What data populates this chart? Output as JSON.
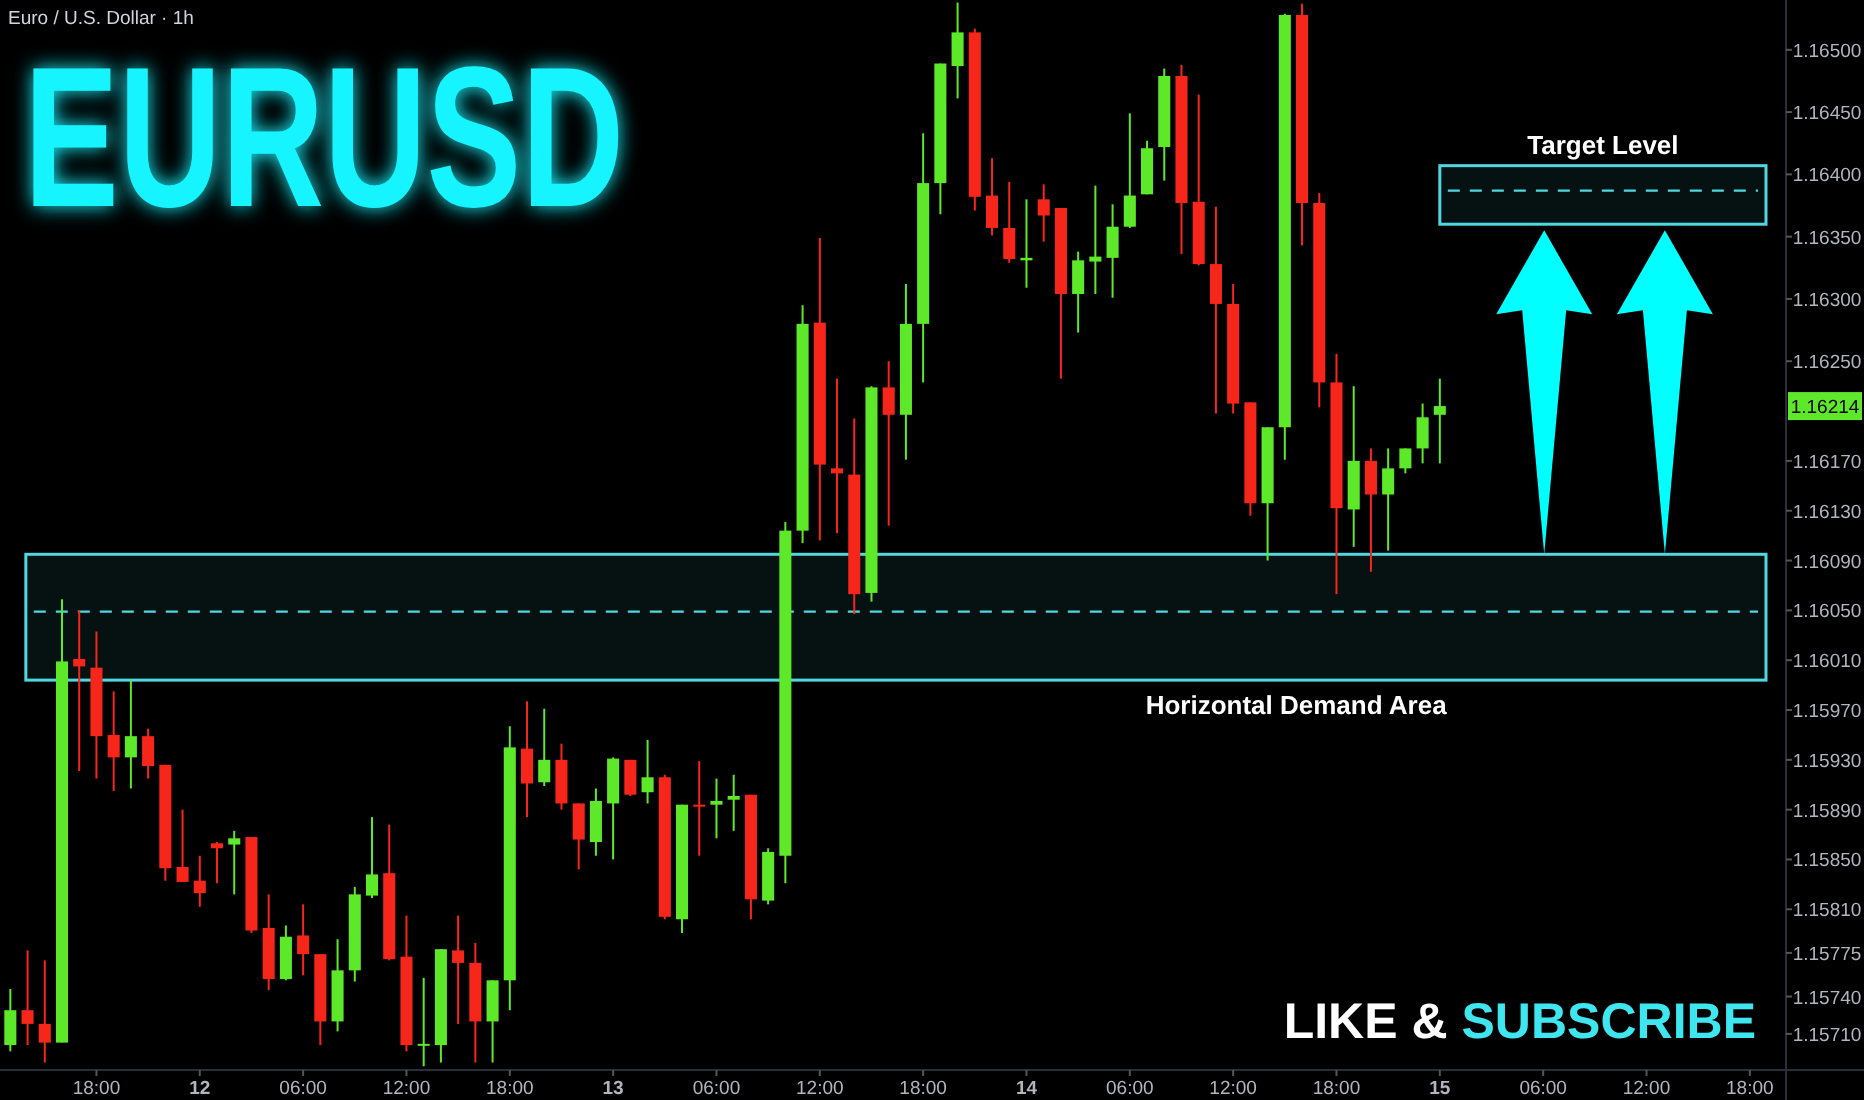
{
  "chart_data": {
    "type": "candlestick",
    "title": "EURUSD",
    "subtitle": "Euro / U.S. Dollar · 1h",
    "colors": [
      "#5ee82a",
      "#f7261b",
      "#f7261b",
      "#5ee82a",
      "#f7261b",
      "#f7261b",
      "#f7261b",
      "#5ee82a",
      "#f7261b",
      "#f7261b",
      "#f7261b",
      "#f7261b",
      "#f7261b",
      "#5ee82a",
      "#f7261b",
      "#f7261b",
      "#5ee82a",
      "#f7261b",
      "#f7261b",
      "#5ee82a",
      "#5ee82a",
      "#5ee82a",
      "#f7261b",
      "#f7261b",
      "#5ee82a",
      "#5ee82a",
      "#f7261b",
      "#f7261b",
      "#5ee82a",
      "#5ee82a",
      "#f7261b",
      "#5ee82a",
      "#f7261b",
      "#f7261b",
      "#5ee82a",
      "#5ee82a",
      "#f7261b",
      "#5ee82a",
      "#f7261b",
      "#5ee82a",
      "#f7261b",
      "#5ee82a",
      "#5ee82a",
      "#f7261b",
      "#5ee82a",
      "#5ee82a",
      "#5ee82a",
      "#f7261b",
      "#f7261b",
      "#f7261b",
      "#5ee82a",
      "#f7261b",
      "#5ee82a",
      "#5ee82a",
      "#5ee82a",
      "#5ee82a",
      "#f7261b",
      "#f7261b",
      "#f7261b",
      "#5ee82a",
      "#f7261b",
      "#f7261b",
      "#5ee82a",
      "#5ee82a",
      "#5ee82a",
      "#5ee82a",
      "#5ee82a",
      "#5ee82a",
      "#f7261b",
      "#f7261b",
      "#f7261b",
      "#f7261b",
      "#f7261b",
      "#5ee82a",
      "#5ee82a",
      "#f7261b",
      "#f7261b",
      "#f7261b",
      "#5ee82a",
      "#f7261b",
      "#5ee82a",
      "#5ee82a",
      "#5ee82a",
      "#5ee82a",
      null,
      null,
      null,
      null,
      null,
      null,
      null,
      null,
      null,
      null,
      null,
      null,
      null,
      null,
      null,
      null,
      null,
      null,
      null,
      null
    ],
    "categories": [
      null,
      null,
      null,
      null,
      null,
      "18:00",
      null,
      null,
      null,
      null,
      null,
      "12",
      null,
      null,
      null,
      null,
      null,
      "06:00",
      null,
      null,
      null,
      null,
      null,
      "12:00",
      null,
      null,
      null,
      null,
      null,
      "18:00",
      null,
      null,
      null,
      null,
      null,
      "13",
      null,
      null,
      null,
      null,
      null,
      "06:00",
      null,
      null,
      null,
      null,
      null,
      "12:00",
      null,
      null,
      null,
      null,
      null,
      "18:00",
      null,
      null,
      null,
      null,
      null,
      "14",
      null,
      null,
      null,
      null,
      null,
      "06:00",
      null,
      null,
      null,
      null,
      null,
      "12:00",
      null,
      null,
      null,
      null,
      null,
      "18:00",
      null,
      null,
      null,
      null,
      null,
      "15",
      null,
      null,
      null,
      null,
      null,
      "06:00",
      null,
      null,
      null,
      null,
      null,
      "12:00",
      null,
      null,
      null,
      null,
      null,
      "18:00",
      null,
      null
    ],
    "ohlc": [
      [
        1.15701,
        1.15746,
        1.15696,
        1.15729
      ],
      [
        1.15729,
        1.15777,
        1.15701,
        1.15718
      ],
      [
        1.15718,
        1.15769,
        1.15687,
        1.15703
      ],
      [
        1.15703,
        1.16059,
        1.15703,
        1.16009
      ],
      [
        1.16011,
        1.1605,
        1.15921,
        1.16005
      ],
      [
        1.16004,
        1.16033,
        1.15915,
        1.15949
      ],
      [
        1.1595,
        1.15985,
        1.15905,
        1.15932
      ],
      [
        1.15932,
        1.15994,
        1.15907,
        1.15949
      ],
      [
        1.15949,
        1.15955,
        1.15915,
        1.15925
      ],
      [
        1.15926,
        1.15926,
        1.15833,
        1.15843
      ],
      [
        1.15844,
        1.1589,
        1.15832,
        1.15832
      ],
      [
        1.15833,
        1.15853,
        1.15812,
        1.15823
      ],
      [
        1.15863,
        1.15864,
        1.15831,
        1.15859
      ],
      [
        1.15862,
        1.15873,
        1.15822,
        1.15867
      ],
      [
        1.15868,
        1.15868,
        1.15791,
        1.15793
      ],
      [
        1.15795,
        1.15822,
        1.15745,
        1.15754
      ],
      [
        1.15754,
        1.15797,
        1.15753,
        1.15788
      ],
      [
        1.15789,
        1.15814,
        1.15757,
        1.15774
      ],
      [
        1.15774,
        1.15774,
        1.15701,
        1.1572
      ],
      [
        1.1572,
        1.15786,
        1.15712,
        1.15761
      ],
      [
        1.15761,
        1.15828,
        1.15752,
        1.15822
      ],
      [
        1.15821,
        1.15884,
        1.15819,
        1.15838
      ],
      [
        1.15839,
        1.15878,
        1.15769,
        1.1577
      ],
      [
        1.15772,
        1.15805,
        1.15696,
        1.15701
      ],
      [
        1.15701,
        1.15755,
        1.15684,
        1.15702
      ],
      [
        1.15701,
        1.15778,
        1.15687,
        1.15778
      ],
      [
        1.15777,
        1.15805,
        1.15718,
        1.15767
      ],
      [
        1.15767,
        1.15783,
        1.15687,
        1.1572
      ],
      [
        1.1572,
        1.15753,
        1.15687,
        1.15753
      ],
      [
        1.15753,
        1.15957,
        1.15729,
        1.1594
      ],
      [
        1.15939,
        1.15977,
        1.15884,
        1.15911
      ],
      [
        1.15912,
        1.15971,
        1.15909,
        1.1593
      ],
      [
        1.1593,
        1.15943,
        1.1589,
        1.15895
      ],
      [
        1.15895,
        1.15895,
        1.15842,
        1.15866
      ],
      [
        1.15864,
        1.15907,
        1.15853,
        1.15897
      ],
      [
        1.15895,
        1.15932,
        1.1585,
        1.15931
      ],
      [
        1.1593,
        1.1593,
        1.15901,
        1.15902
      ],
      [
        1.15904,
        1.15946,
        1.15895,
        1.15916
      ],
      [
        1.15916,
        1.15918,
        1.15802,
        1.15804
      ],
      [
        1.15802,
        1.15894,
        1.15791,
        1.15894
      ],
      [
        1.15894,
        1.15929,
        1.15853,
        1.15893
      ],
      [
        1.15894,
        1.15915,
        1.15867,
        1.15897
      ],
      [
        1.15898,
        1.15918,
        1.15873,
        1.15901
      ],
      [
        1.15902,
        1.15902,
        1.15802,
        1.15818
      ],
      [
        1.15817,
        1.15859,
        1.15814,
        1.15856
      ],
      [
        1.15853,
        1.16121,
        1.15831,
        1.16114
      ],
      [
        1.16114,
        1.16295,
        1.16104,
        1.1628
      ],
      [
        1.16281,
        1.16349,
        1.16106,
        1.16167
      ],
      [
        1.16164,
        1.16236,
        1.16112,
        1.1616
      ],
      [
        1.16159,
        1.16204,
        1.16047,
        1.16063
      ],
      [
        1.16064,
        1.1623,
        1.16057,
        1.16229
      ],
      [
        1.16229,
        1.1625,
        1.16118,
        1.16207
      ],
      [
        1.16207,
        1.16312,
        1.16171,
        1.1628
      ],
      [
        1.1628,
        1.16433,
        1.16233,
        1.16393
      ],
      [
        1.16393,
        1.16489,
        1.16368,
        1.16489
      ],
      [
        1.16487,
        1.16538,
        1.16461,
        1.16514
      ],
      [
        1.16514,
        1.16517,
        1.16371,
        1.16382
      ],
      [
        1.16383,
        1.16413,
        1.16351,
        1.16357
      ],
      [
        1.16357,
        1.16394,
        1.16329,
        1.16332
      ],
      [
        1.16331,
        1.1638,
        1.16309,
        1.16333
      ],
      [
        1.1638,
        1.16392,
        1.16346,
        1.16367
      ],
      [
        1.16373,
        1.16373,
        1.16236,
        1.16304
      ],
      [
        1.16304,
        1.16338,
        1.16273,
        1.16331
      ],
      [
        1.1633,
        1.16391,
        1.16304,
        1.16334
      ],
      [
        1.16333,
        1.16376,
        1.16301,
        1.16358
      ],
      [
        1.16358,
        1.16449,
        1.16357,
        1.16383
      ],
      [
        1.16384,
        1.16427,
        1.16384,
        1.16421
      ],
      [
        1.16422,
        1.16485,
        1.16395,
        1.16479
      ],
      [
        1.16479,
        1.16488,
        1.16336,
        1.16377
      ],
      [
        1.16378,
        1.16464,
        1.16327,
        1.16328
      ],
      [
        1.16328,
        1.16374,
        1.16208,
        1.16296
      ],
      [
        1.16296,
        1.16312,
        1.16208,
        1.16216
      ],
      [
        1.16217,
        1.16217,
        1.16126,
        1.16136
      ],
      [
        1.16136,
        1.16197,
        1.1609,
        1.16197
      ],
      [
        1.16197,
        1.16529,
        1.16171,
        1.16528
      ],
      [
        1.16528,
        1.16537,
        1.16343,
        1.16377
      ],
      [
        1.16377,
        1.16385,
        1.16213,
        1.16233
      ],
      [
        1.16233,
        1.16256,
        1.16063,
        1.16132
      ],
      [
        1.16131,
        1.1623,
        1.16101,
        1.1617
      ],
      [
        1.1617,
        1.1618,
        1.16081,
        1.16143
      ],
      [
        1.16143,
        1.1618,
        1.16098,
        1.16164
      ],
      [
        1.16164,
        1.1618,
        1.1616,
        1.1618
      ],
      [
        1.1618,
        1.16216,
        1.16168,
        1.16205
      ],
      [
        1.16207,
        1.16236,
        1.16168,
        1.16214
      ],
      null,
      null,
      null,
      null,
      null,
      null,
      null,
      null,
      null,
      null,
      null,
      null,
      null,
      null,
      null,
      null,
      null,
      null,
      null,
      null
    ],
    "ylim": [
      1.15681,
      1.1654
    ],
    "yticks": [
      {
        "value": 1.165,
        "label": "1.16500"
      },
      {
        "value": 1.1645,
        "label": "1.16450"
      },
      {
        "value": 1.164,
        "label": "1.16400"
      },
      {
        "value": 1.1635,
        "label": "1.16350"
      },
      {
        "value": 1.163,
        "label": "1.16300"
      },
      {
        "value": 1.1625,
        "label": "1.16250"
      },
      {
        "value": 1.1617,
        "label": "1.16170"
      },
      {
        "value": 1.1613,
        "label": "1.16130"
      },
      {
        "value": 1.1609,
        "label": "1.16090"
      },
      {
        "value": 1.1605,
        "label": "1.16050"
      },
      {
        "value": 1.1601,
        "label": "1.16010"
      },
      {
        "value": 1.1597,
        "label": "1.15970"
      },
      {
        "value": 1.1593,
        "label": "1.15930"
      },
      {
        "value": 1.1589,
        "label": "1.15890"
      },
      {
        "value": 1.1585,
        "label": "1.15850"
      },
      {
        "value": 1.1581,
        "label": "1.15810"
      },
      {
        "value": 1.15775,
        "label": "1.15775"
      },
      {
        "value": 1.1574,
        "label": "1.15740"
      },
      {
        "value": 1.1571,
        "label": "1.15710"
      }
    ],
    "bands": [
      {
        "axis": "y",
        "from": 1.15994,
        "to": 1.16095,
        "label": "Horizontal Demand Area",
        "color": "#4fd8e0"
      },
      {
        "axis": "y",
        "from": 1.1636,
        "to": 1.16407,
        "label": "Target Level",
        "color": "#4fd8e0"
      }
    ],
    "ref_lines": [
      {
        "axis": "y",
        "value": 1.16049,
        "color": "#4fd8e0",
        "line_style": "dashed"
      },
      {
        "axis": "y",
        "value": 1.16387,
        "color": "#4fd8e0",
        "line_style": "dashed"
      }
    ],
    "annotations": [
      "LIKE & SUBSCRIBE",
      "1.16214"
    ]
  }
}
